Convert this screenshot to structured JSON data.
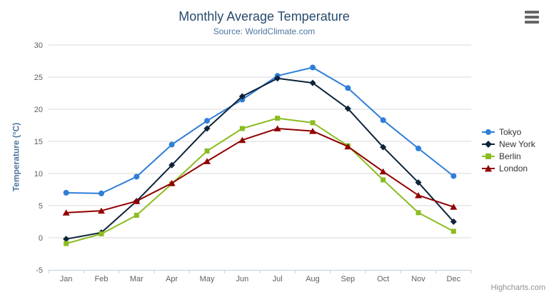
{
  "header": {
    "title": "Monthly Average Temperature",
    "subtitle": "Source: WorldClimate.com"
  },
  "chart_data": {
    "type": "line",
    "categories": [
      "Jan",
      "Feb",
      "Mar",
      "Apr",
      "May",
      "Jun",
      "Jul",
      "Aug",
      "Sep",
      "Oct",
      "Nov",
      "Dec"
    ],
    "series": [
      {
        "name": "Tokyo",
        "color": "#2f7ed8",
        "marker": "circle",
        "values": [
          7.0,
          6.9,
          9.5,
          14.5,
          18.2,
          21.5,
          25.2,
          26.5,
          23.3,
          18.3,
          13.9,
          9.6
        ]
      },
      {
        "name": "New York",
        "color": "#0d233a",
        "marker": "diamond",
        "values": [
          -0.2,
          0.8,
          5.7,
          11.3,
          17.0,
          22.0,
          24.8,
          24.1,
          20.1,
          14.1,
          8.6,
          2.5
        ]
      },
      {
        "name": "Berlin",
        "color": "#8bbc21",
        "marker": "square",
        "values": [
          -0.9,
          0.6,
          3.5,
          8.4,
          13.5,
          17.0,
          18.6,
          17.9,
          14.3,
          9.0,
          3.9,
          1.0
        ]
      },
      {
        "name": "London",
        "color": "#910000",
        "marker": "triangle",
        "values": [
          3.9,
          4.2,
          5.7,
          8.5,
          11.9,
          15.2,
          17.0,
          16.6,
          14.2,
          10.3,
          6.6,
          4.8
        ]
      }
    ],
    "title": "Monthly Average Temperature",
    "subtitle": "Source: WorldClimate.com",
    "xlabel": "",
    "ylabel": "Temperature (°C)",
    "ylim": [
      -5,
      30
    ],
    "tick_interval": 5,
    "grid": true,
    "legend_position": "right"
  },
  "credits": {
    "label": "Highcharts.com"
  },
  "colors": {
    "title": "#274b6d",
    "subtitle": "#4d759e",
    "axis_label": "#606060",
    "axis_line": "#c0d0e0",
    "grid_line": "#d8d8d8",
    "legend_text": "#333333",
    "credits": "#909090",
    "menu_icon": "#666666"
  }
}
